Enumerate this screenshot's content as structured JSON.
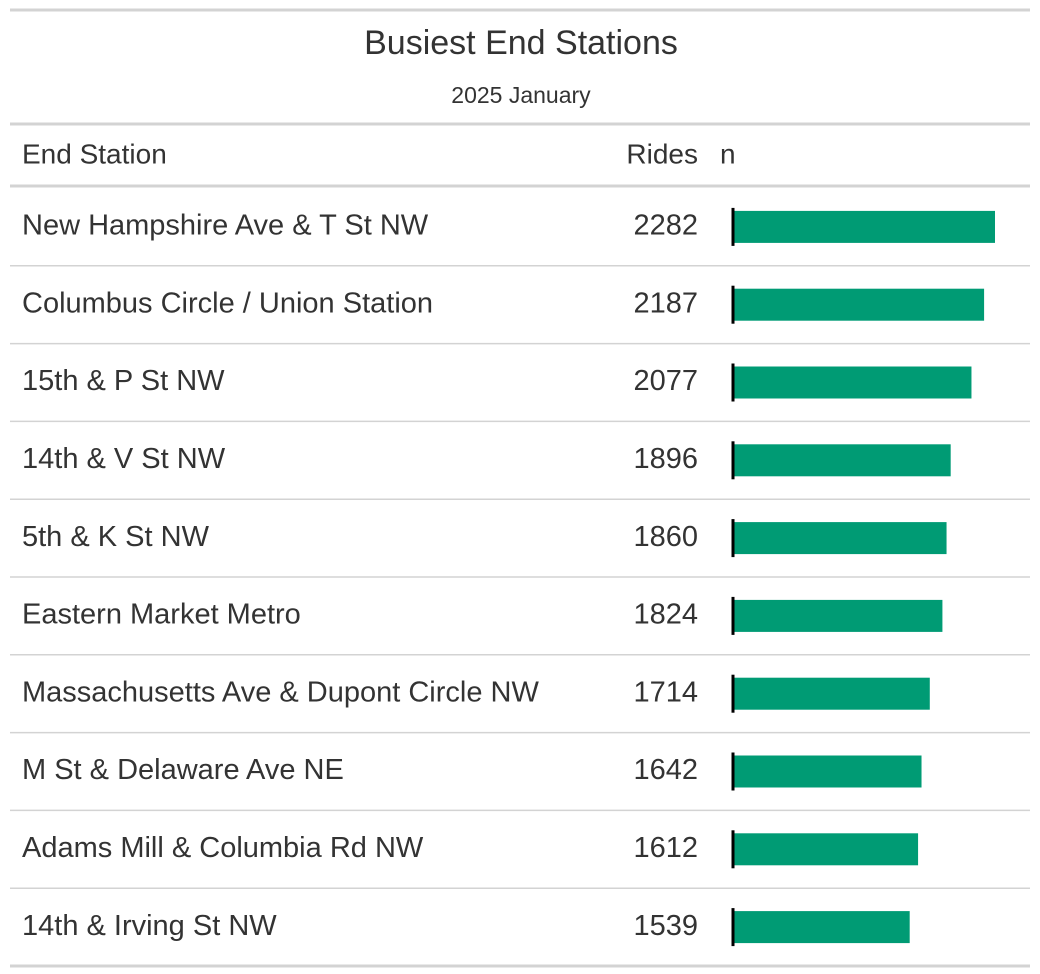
{
  "header": {
    "title": "Busiest End Stations",
    "subtitle": "2025 January"
  },
  "table": {
    "columns": [
      "End Station",
      "Rides",
      "n"
    ],
    "rows": [
      [
        "New Hampshire Ave & T St NW",
        2282
      ],
      [
        "Columbus Circle / Union Station",
        2187
      ],
      [
        "15th & P St NW",
        2077
      ],
      [
        "14th & V St NW",
        1896
      ],
      [
        "5th & K St NW",
        1860
      ],
      [
        "Eastern Market Metro",
        1824
      ],
      [
        "Massachusetts Ave & Dupont Circle NW",
        1714
      ],
      [
        "M St & Delaware Ave NE",
        1642
      ],
      [
        "Adams Mill & Columbia Rd NW",
        1612
      ],
      [
        "14th & Irving St NW",
        1539
      ]
    ]
  }
}
